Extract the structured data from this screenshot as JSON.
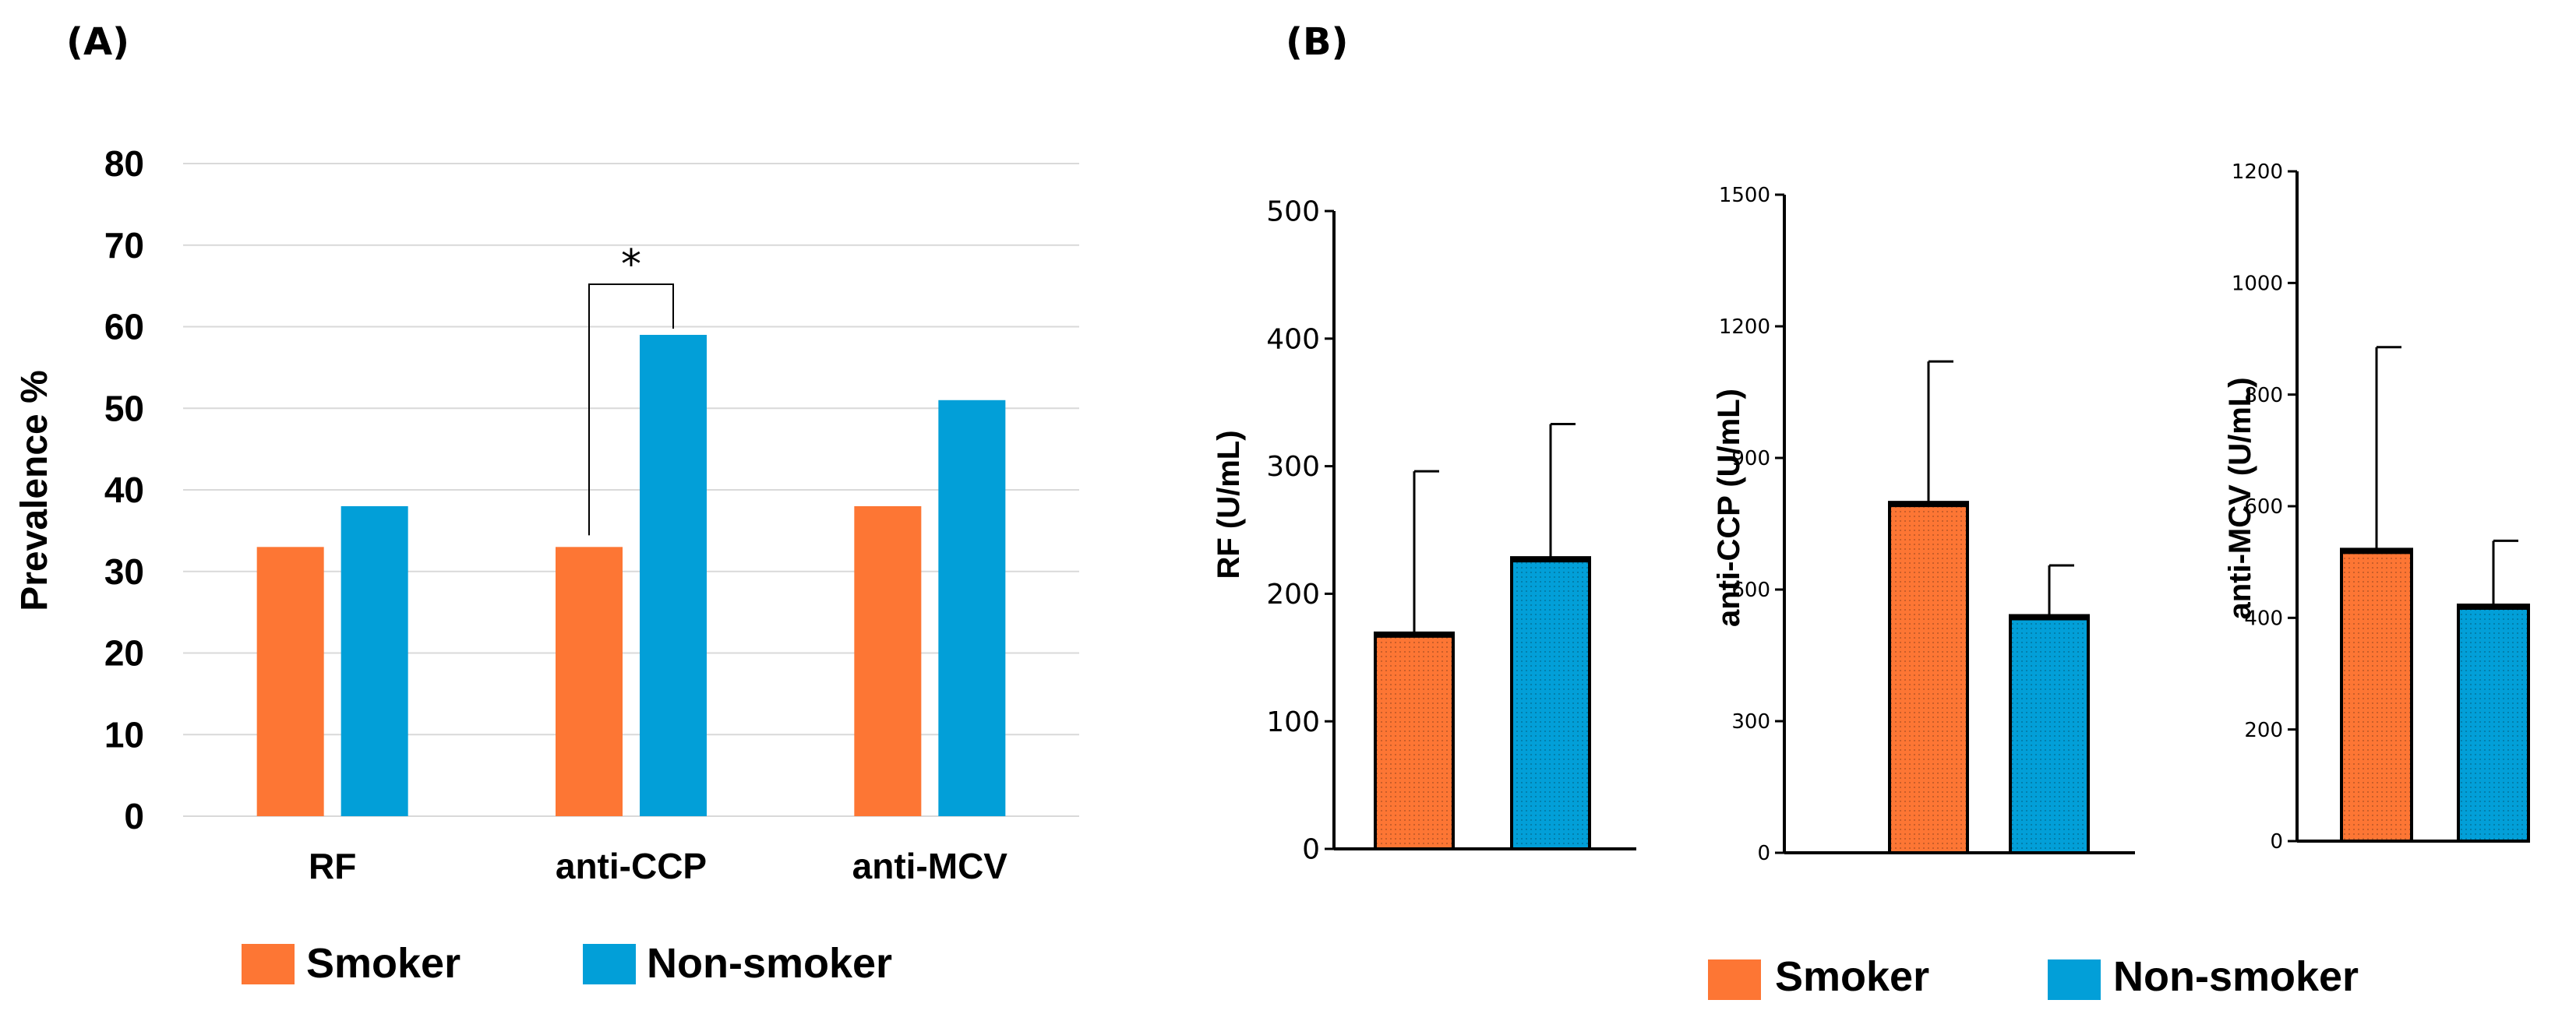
{
  "colors": {
    "smoker": "#fd7634",
    "non_smoker": "#029fd8",
    "axis": "#000000",
    "grid": "#d9d9d9"
  },
  "panel_a": {
    "label": "(A)",
    "legend": [
      "Smoker",
      "Non-smoker"
    ],
    "significance": "*"
  },
  "panel_b": {
    "label": "(B)",
    "legend": [
      "Smoker",
      "Non-smoker"
    ]
  },
  "chart_data": [
    {
      "id": "A",
      "type": "bar",
      "title": "",
      "xlabel": "",
      "ylabel": "Prevalence %",
      "categories": [
        "RF",
        "anti-CCP",
        "anti-MCV"
      ],
      "series": [
        {
          "name": "Smoker",
          "values": [
            33,
            33,
            38
          ]
        },
        {
          "name": "Non-smoker",
          "values": [
            38,
            59,
            51
          ]
        }
      ],
      "ylim": [
        0,
        80
      ],
      "yticks": [
        0,
        10,
        20,
        30,
        40,
        50,
        60,
        70,
        80
      ],
      "grid": true,
      "legend": "bottom",
      "annotation": {
        "text": "*",
        "category": "anti-CCP"
      }
    },
    {
      "id": "B1",
      "type": "bar",
      "ylabel": "RF (U/mL)",
      "categories": [
        "Smoker",
        "Non-smoker"
      ],
      "values": [
        168,
        227
      ],
      "error": [
        128,
        106
      ],
      "ylim": [
        0,
        500
      ],
      "yticks": [
        0,
        100,
        200,
        300,
        400,
        500
      ],
      "grid": false
    },
    {
      "id": "B2",
      "type": "bar",
      "ylabel": "anti-CCP (U/mL)",
      "categories": [
        "Smoker",
        "Non-smoker"
      ],
      "values": [
        795,
        537
      ],
      "error": [
        325,
        118
      ],
      "ylim": [
        0,
        1500
      ],
      "yticks": [
        0,
        300,
        600,
        900,
        1200,
        1500
      ],
      "grid": false
    },
    {
      "id": "B3",
      "type": "bar",
      "ylabel": "anti-MCV (U/mL)",
      "categories": [
        "Smoker",
        "Non-smoker"
      ],
      "values": [
        520,
        420
      ],
      "error": [
        365,
        118
      ],
      "ylim": [
        0,
        1200
      ],
      "yticks": [
        0,
        200,
        400,
        600,
        800,
        1000,
        1200
      ],
      "grid": false
    }
  ]
}
